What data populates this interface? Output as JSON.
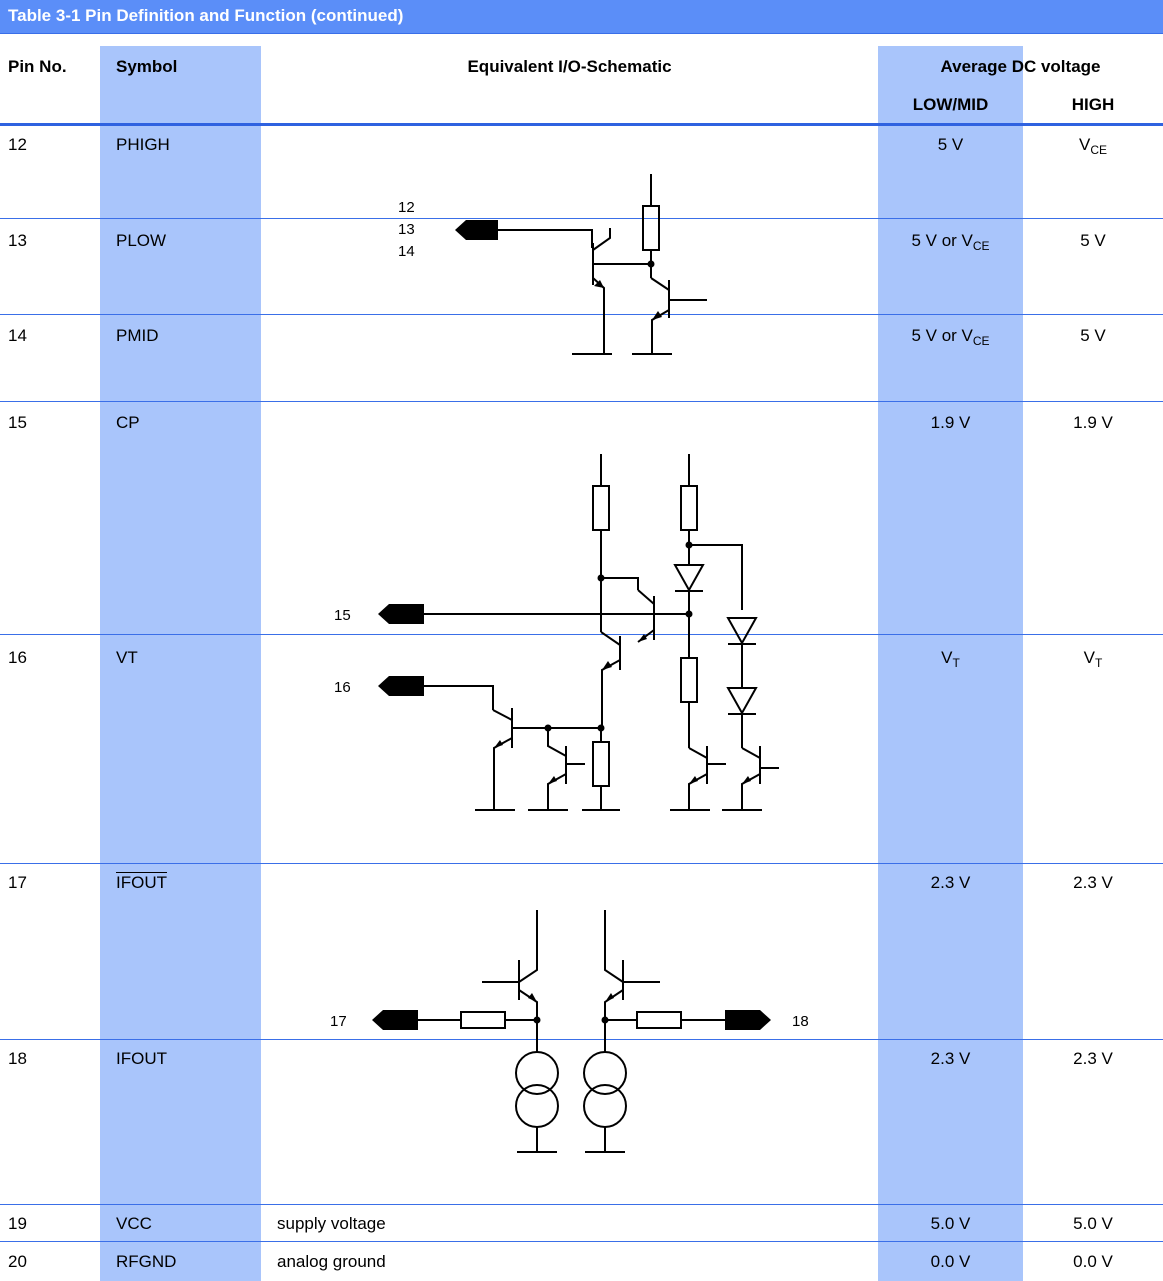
{
  "title": "Table 3-1   Pin Definition and Function (continued)",
  "headers": {
    "pin": "Pin No.",
    "symbol": "Symbol",
    "schematic": "Equivalent I/O-Schematic",
    "voltage": "Average DC voltage",
    "low": "LOW/MID",
    "high": "HIGH"
  },
  "rows": [
    {
      "pin": "12",
      "symbol": "PHIGH",
      "low": "5 V",
      "high_main": "V",
      "high_sub": "CE"
    },
    {
      "pin": "13",
      "symbol": "PLOW",
      "low_main": "5 V or V",
      "low_sub": "CE",
      "high": "5 V"
    },
    {
      "pin": "14",
      "symbol": "PMID",
      "low_main": "5 V or V",
      "low_sub": "CE",
      "high": "5 V"
    },
    {
      "pin": "15",
      "symbol": "CP",
      "low": "1.9 V",
      "high": "1.9 V"
    },
    {
      "pin": "16",
      "symbol": "VT",
      "low_main": "V",
      "low_sub": "T",
      "high_main": "V",
      "high_sub": "T"
    },
    {
      "pin": "17",
      "symbol": "IFOUT",
      "low": "2.3 V",
      "high": "2.3 V"
    },
    {
      "pin": "18",
      "symbol": "IFOUT",
      "low": "2.3 V",
      "high": "2.3 V"
    },
    {
      "pin": "19",
      "symbol": "VCC",
      "description": "supply voltage",
      "low": "5.0 V",
      "high": "5.0 V"
    },
    {
      "pin": "20",
      "symbol": "RFGND",
      "description": "analog ground",
      "low": "0.0 V",
      "high": "0.0 V"
    }
  ],
  "schematic_labels": {
    "s1_pin_a": "12",
    "s1_pin_b": "13",
    "s1_pin_c": "14",
    "s2_pin_a": "15",
    "s2_pin_b": "16",
    "s3_pin_a": "17",
    "s3_pin_b": "18"
  }
}
